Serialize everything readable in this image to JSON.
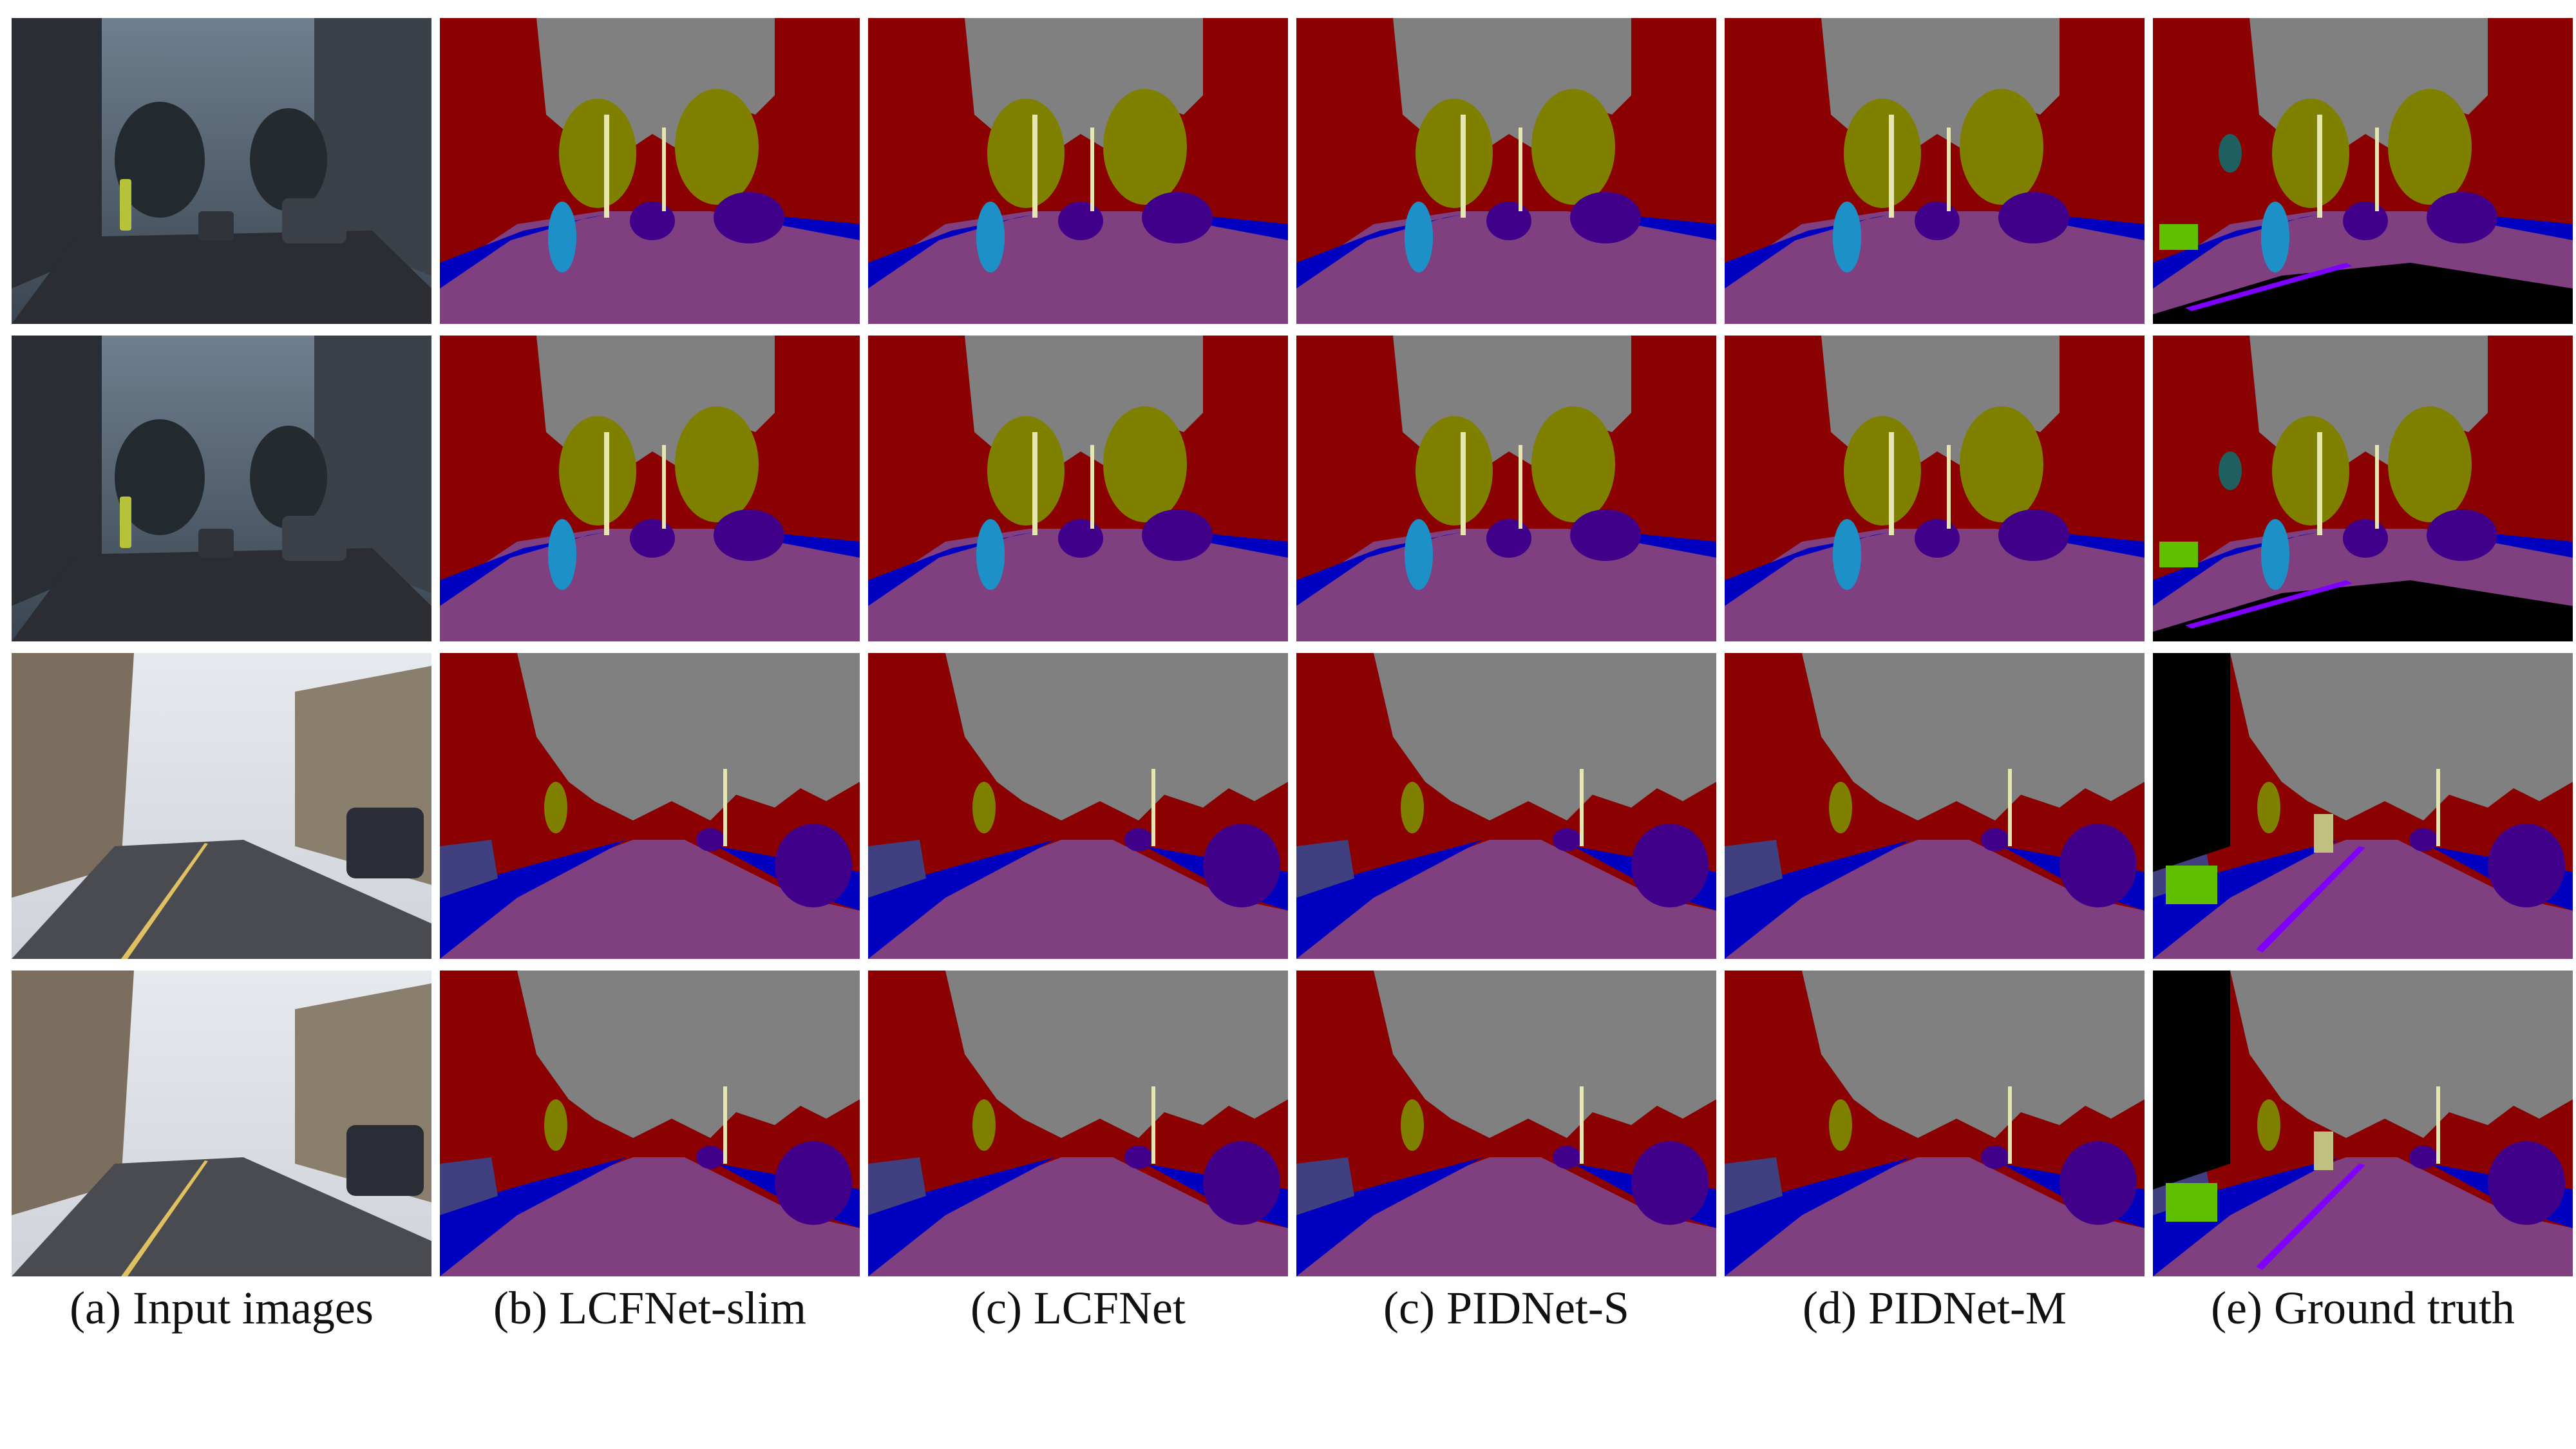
{
  "captions": [
    "(a) Input images",
    "(b) LCFNet-slim",
    "(c) LCFNet",
    "(c) PIDNet-S",
    "(d) PIDNet-M",
    "(e) Ground truth"
  ],
  "classes": {
    "building": "#8b0000",
    "sky": "#808080",
    "tree": "#808000",
    "road": "#804080",
    "sidewalk": "#0000c0",
    "car": "#40008a",
    "pedestrian": "#1e90c8",
    "pole": "#e6e6b0",
    "fence": "#404080",
    "sign": "#c0c080",
    "bicyclist": "#60c000",
    "void": "#000000",
    "lane": "#8000ff"
  }
}
